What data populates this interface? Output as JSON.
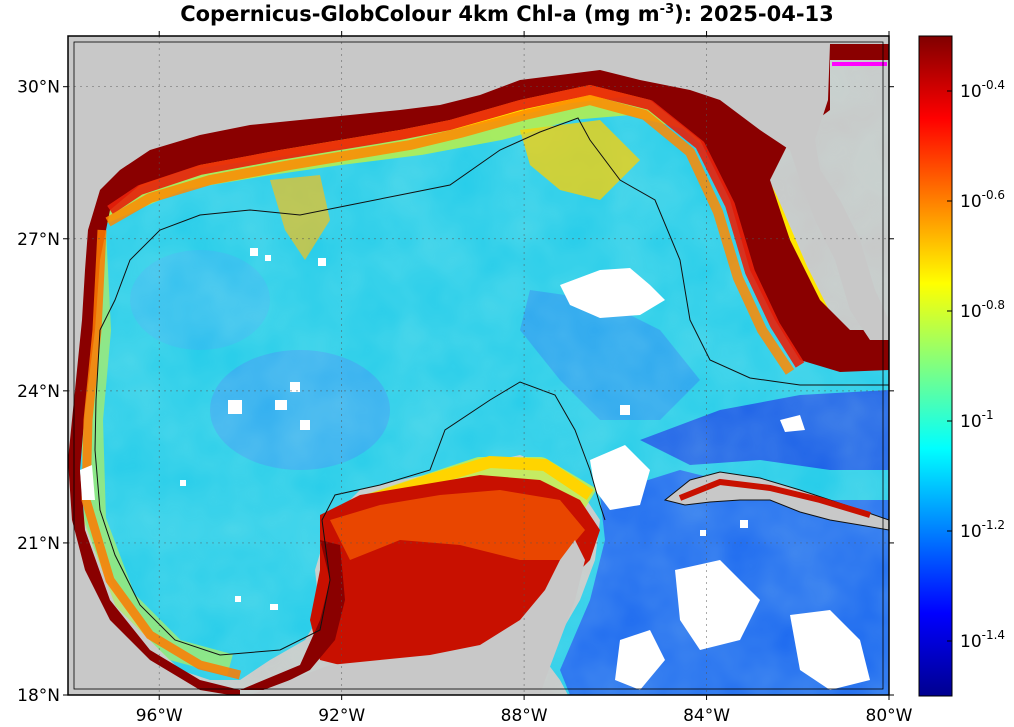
{
  "title": {
    "prefix": "Copernicus-GlobColour 4km Chl-a (mg m",
    "superscript": "-3",
    "suffix": "): 2025-04-13"
  },
  "map": {
    "lon_range": [
      -98,
      -80
    ],
    "lat_range": [
      18,
      31
    ],
    "lat_ticks": [
      {
        "value": 18,
        "label": "18°N"
      },
      {
        "value": 21,
        "label": "21°N"
      },
      {
        "value": 24,
        "label": "24°N"
      },
      {
        "value": 27,
        "label": "27°N"
      },
      {
        "value": 30,
        "label": "30°N"
      }
    ],
    "lon_ticks": [
      {
        "value": -96,
        "label": "96°W"
      },
      {
        "value": -92,
        "label": "92°W"
      },
      {
        "value": -88,
        "label": "88°W"
      },
      {
        "value": -84,
        "label": "84°W"
      },
      {
        "value": -80,
        "label": "80°W"
      }
    ],
    "grid": true,
    "land_color": "#c8c8c8",
    "nodata_color": "#ffffff",
    "contour_color": "#111111",
    "highlight_color": "#ff00ff"
  },
  "colorbar": {
    "scale": "log10",
    "range": [
      -1.5,
      -0.3
    ],
    "ticks": [
      {
        "value": -0.4,
        "base": "10",
        "exp": "-0.4"
      },
      {
        "value": -0.6,
        "base": "10",
        "exp": "-0.6"
      },
      {
        "value": -0.8,
        "base": "10",
        "exp": "-0.8"
      },
      {
        "value": -1.0,
        "base": "10",
        "exp": "-1"
      },
      {
        "value": -1.2,
        "base": "10",
        "exp": "-1.2"
      },
      {
        "value": -1.4,
        "base": "10",
        "exp": "-1.4"
      }
    ],
    "colormap": [
      "#00008f",
      "#0000ff",
      "#0080ff",
      "#00ffff",
      "#80ff80",
      "#ffff00",
      "#ff8000",
      "#ff0000",
      "#800000"
    ]
  }
}
